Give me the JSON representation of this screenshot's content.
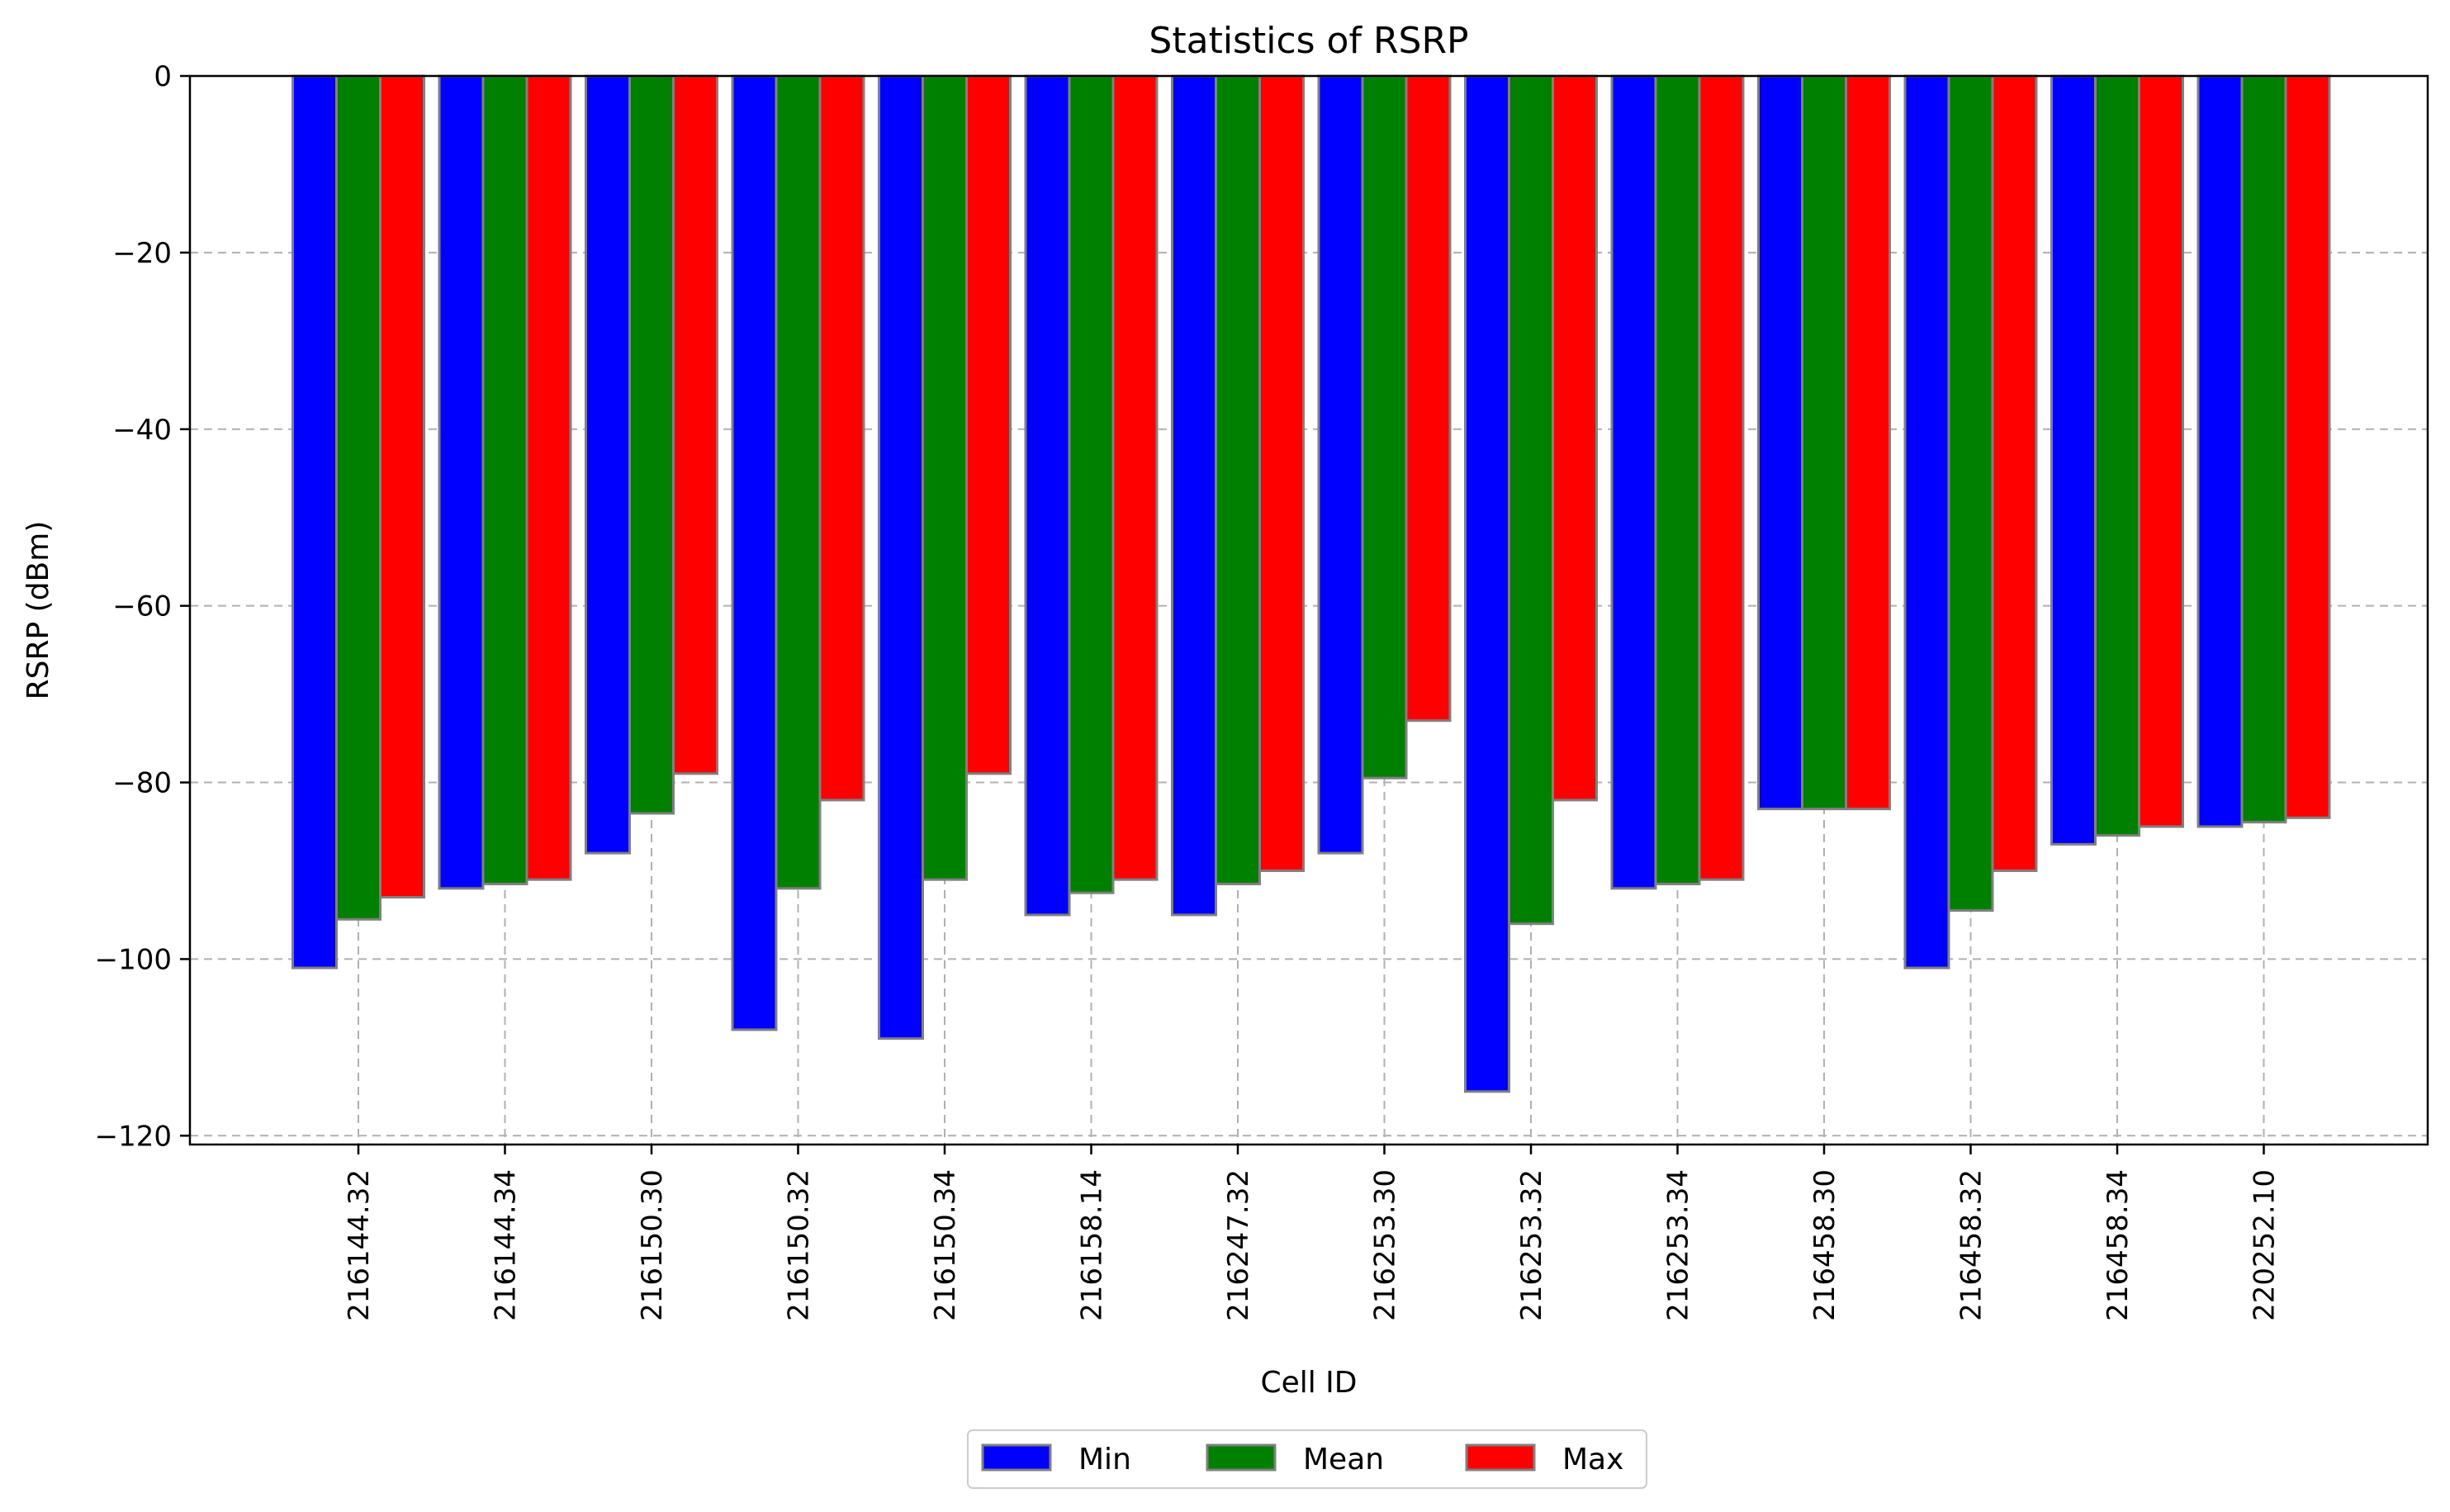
{
  "chart_data": {
    "type": "bar",
    "title": "Statistics of RSRP",
    "xlabel": "Cell ID",
    "ylabel": "RSRP (dBm)",
    "ylim": [
      -121,
      0
    ],
    "yticks": [
      0,
      -20,
      -40,
      -60,
      -80,
      -100,
      -120
    ],
    "yticks_labels": [
      "0",
      "−20",
      "−40",
      "−60",
      "−80",
      "−100",
      "−120"
    ],
    "grid": true,
    "legend_placement": "bottom-center",
    "categories": [
      "216144.32",
      "216144.34",
      "216150.30",
      "216150.32",
      "216150.34",
      "216158.14",
      "216247.32",
      "216253.30",
      "216253.32",
      "216253.34",
      "216458.30",
      "216458.32",
      "216458.34",
      "220252.10"
    ],
    "series": [
      {
        "name": "Min",
        "color": "#0000ff",
        "values": [
          -101,
          -92,
          -88,
          -108,
          -109,
          -95,
          -95,
          -88,
          -115,
          -92,
          -83,
          -101,
          -87,
          -85
        ]
      },
      {
        "name": "Mean",
        "color": "#008000",
        "values": [
          -95.5,
          -91.5,
          -83.5,
          -92,
          -91,
          -92.5,
          -91.5,
          -79.5,
          -96,
          -91.5,
          -83,
          -94.5,
          -86,
          -84.5
        ]
      },
      {
        "name": "Max",
        "color": "#ff0000",
        "values": [
          -93,
          -91,
          -79,
          -82,
          -79,
          -91,
          -90,
          -73,
          -82,
          -91,
          -83,
          -90,
          -85,
          -84
        ]
      }
    ]
  }
}
